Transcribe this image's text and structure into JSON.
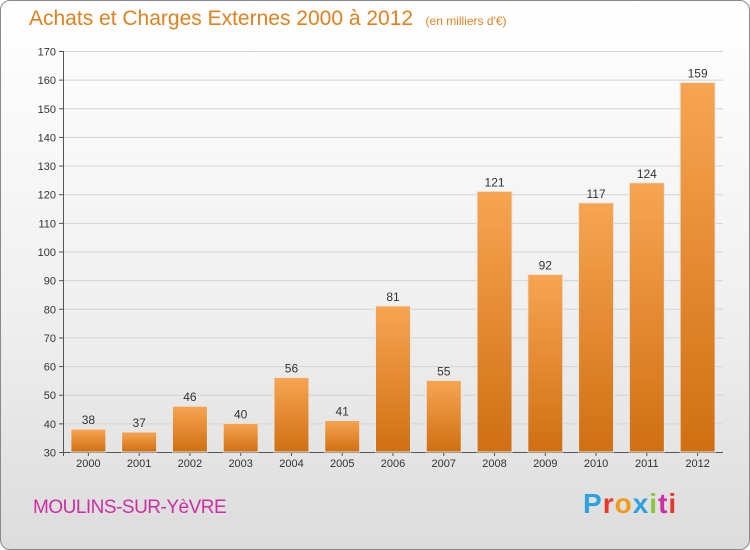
{
  "title": "Achats et Charges Externes 2000 à 2012",
  "unit": "(en milliers d'€)",
  "commune": "MOULINS-SUR-YèVRE",
  "logo": {
    "text": "Proxiti",
    "letters": [
      {
        "ch": "P",
        "color": "#2aa3de"
      },
      {
        "ch": "r",
        "color": "#e8372d"
      },
      {
        "ch": "o",
        "color": "#f39a1c"
      },
      {
        "ch": "x",
        "color": "#2aa3de"
      },
      {
        "ch": "i",
        "color": "#8cc63e"
      },
      {
        "ch": "t",
        "color": "#cc2fa3"
      },
      {
        "ch": "i",
        "color": "#e8372d"
      }
    ]
  },
  "colors": {
    "bar_top": "#f7a552",
    "bar_bottom": "#d06f12",
    "title": "#e0801f",
    "commune": "#cc2fa3"
  },
  "chart_data": {
    "type": "bar",
    "categories": [
      "2000",
      "2001",
      "2002",
      "2003",
      "2004",
      "2005",
      "2006",
      "2007",
      "2008",
      "2009",
      "2010",
      "2011",
      "2012"
    ],
    "values": [
      38,
      37,
      46,
      40,
      56,
      41,
      81,
      55,
      121,
      92,
      117,
      124,
      159
    ],
    "ylim": [
      30,
      170
    ],
    "yticks": [
      30,
      40,
      50,
      60,
      70,
      80,
      90,
      100,
      110,
      120,
      130,
      140,
      150,
      160,
      170
    ],
    "grid": true
  }
}
